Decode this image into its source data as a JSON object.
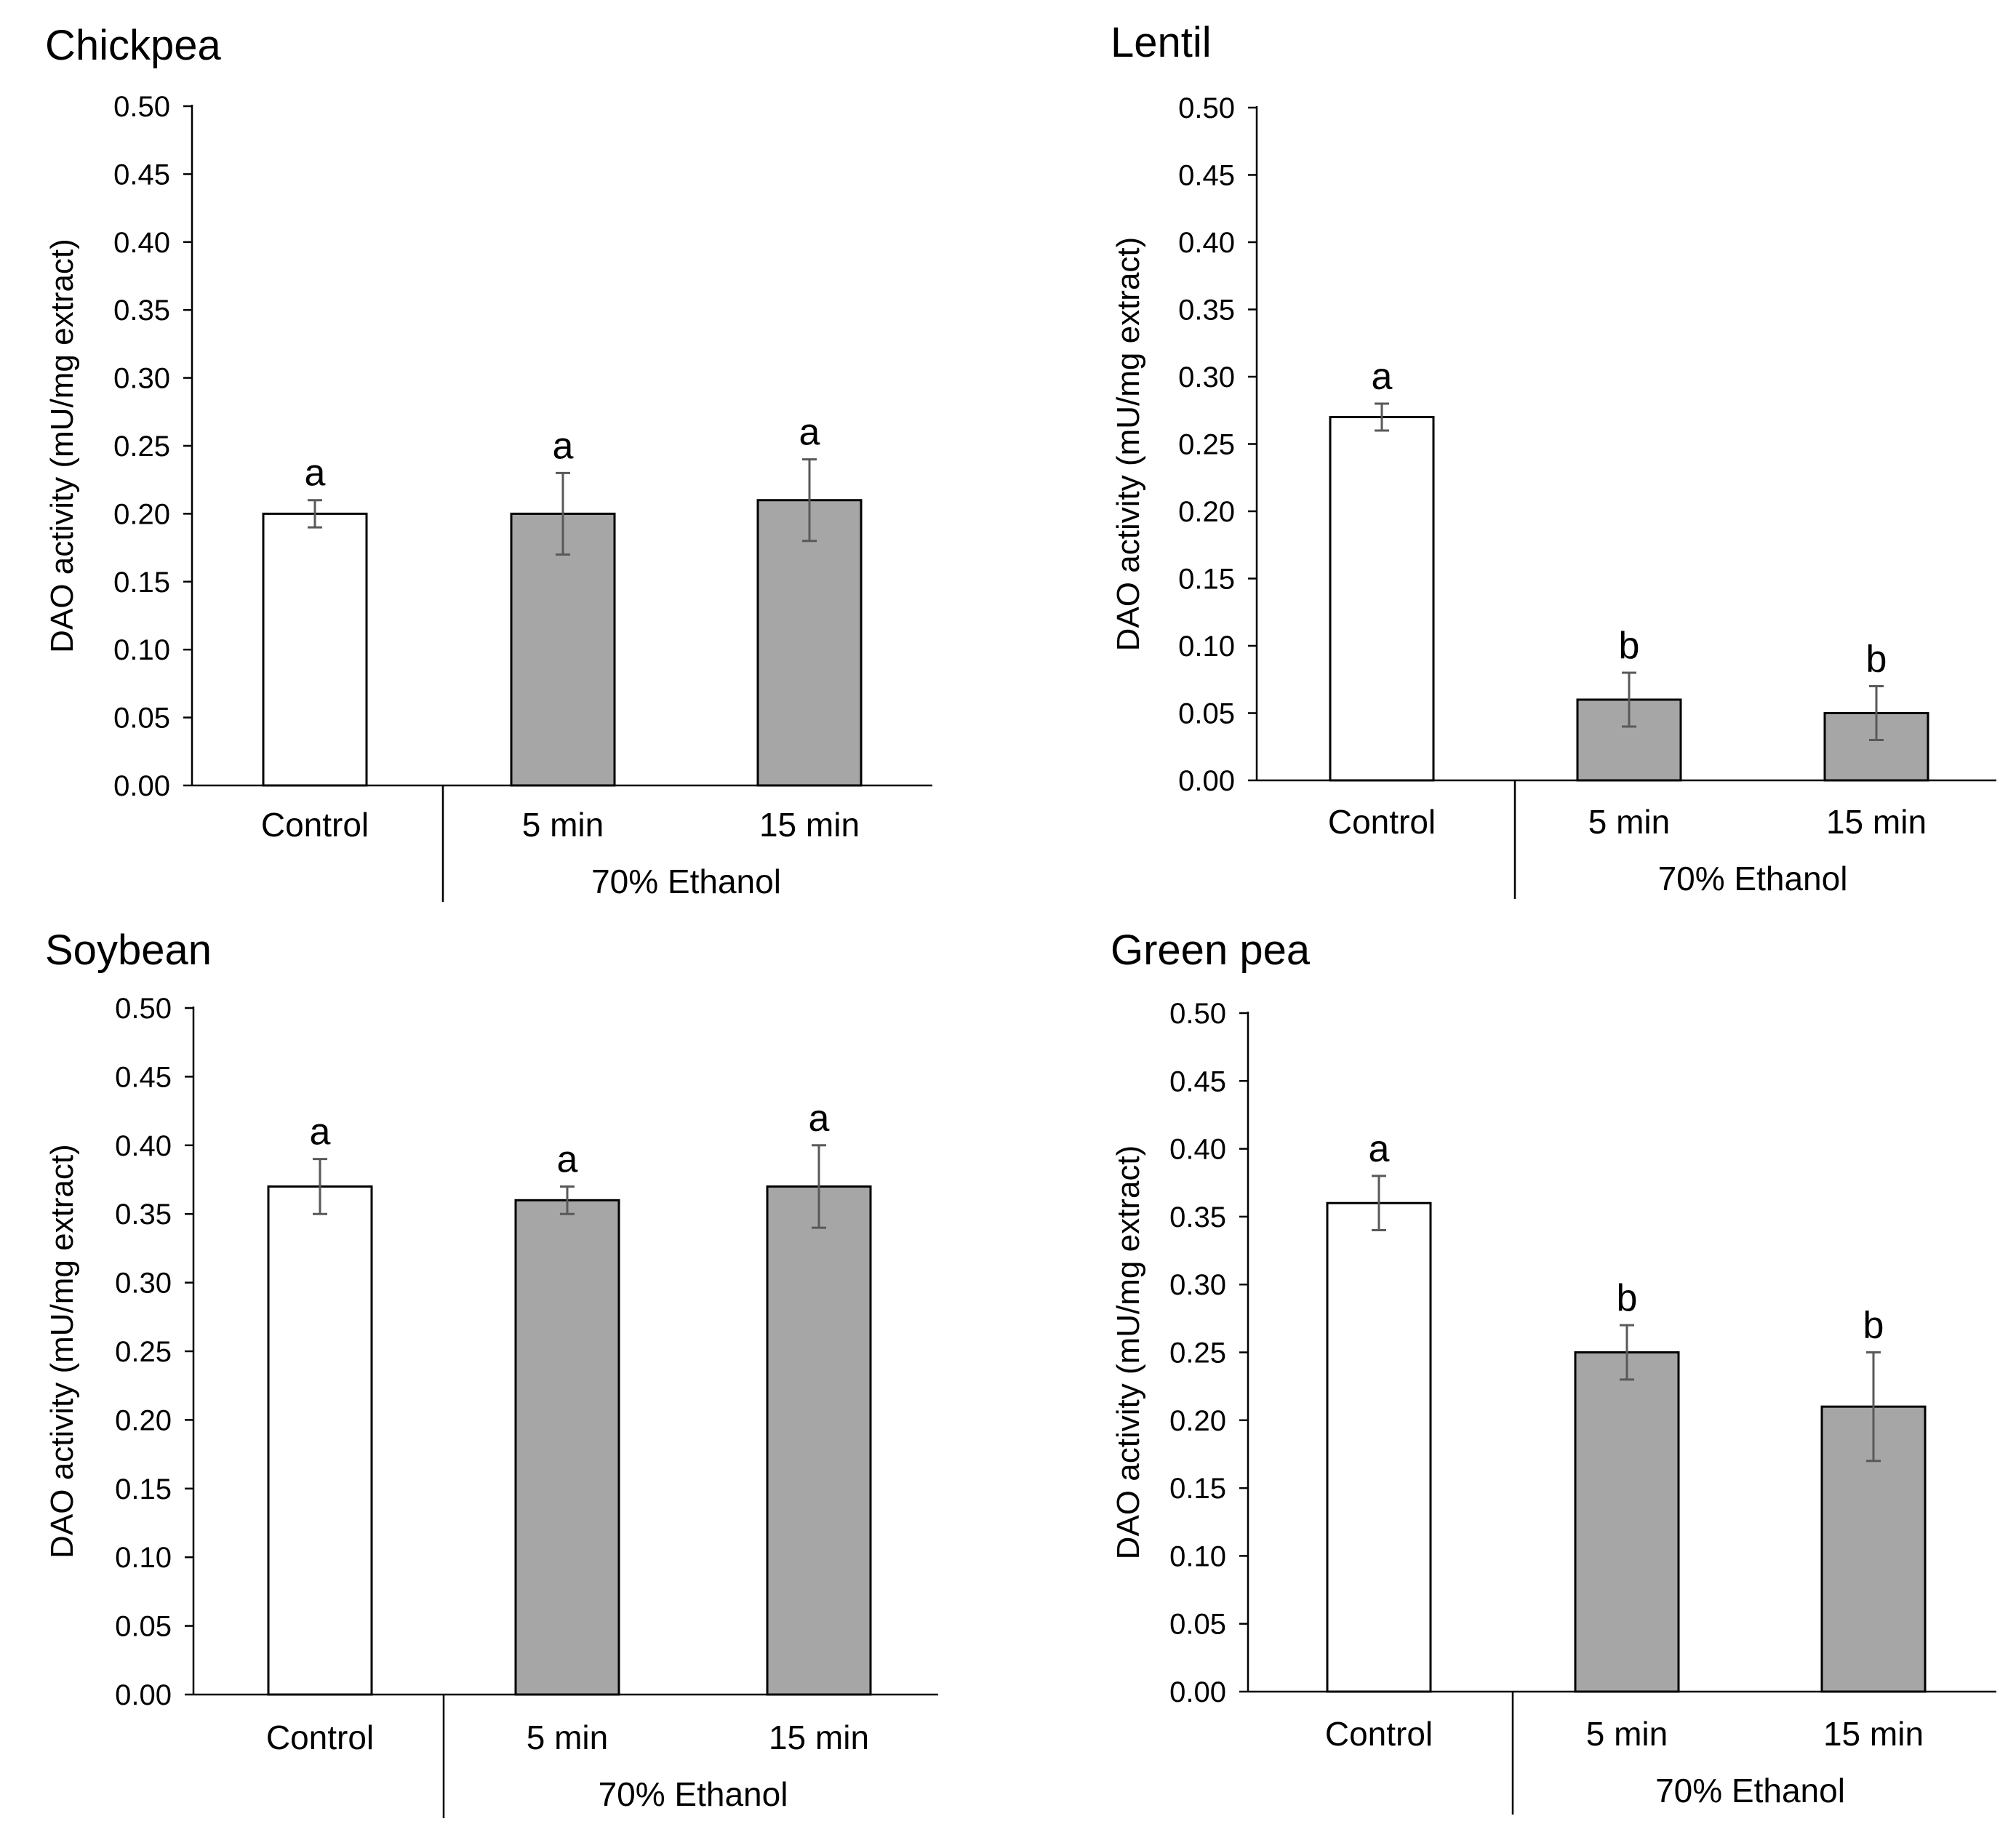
{
  "chart_data": [
    {
      "type": "bar",
      "title": "Chickpea",
      "ylabel": "DAO activity (mU/mg extract)",
      "categories": [
        "Control",
        "5 min",
        "15 min"
      ],
      "group_label": "70% Ethanol",
      "values": [
        0.2,
        0.2,
        0.21
      ],
      "errors": [
        0.01,
        0.03,
        0.03
      ],
      "significance": [
        "a",
        "a",
        "a"
      ],
      "ylim": [
        0,
        0.5
      ],
      "yticks": [
        "0.00",
        "0.05",
        "0.10",
        "0.15",
        "0.20",
        "0.25",
        "0.30",
        "0.35",
        "0.40",
        "0.45",
        "0.50"
      ],
      "bar_colors": [
        "#ffffff",
        "#a6a6a6",
        "#a6a6a6"
      ]
    },
    {
      "type": "bar",
      "title": "Lentil",
      "ylabel": "DAO activity (mU/mg extract)",
      "categories": [
        "Control",
        "5 min",
        "15 min"
      ],
      "group_label": "70% Ethanol",
      "values": [
        0.27,
        0.06,
        0.05
      ],
      "errors": [
        0.01,
        0.02,
        0.02
      ],
      "significance": [
        "a",
        "b",
        "b"
      ],
      "ylim": [
        0,
        0.5
      ],
      "yticks": [
        "0.00",
        "0.05",
        "0.10",
        "0.15",
        "0.20",
        "0.25",
        "0.30",
        "0.35",
        "0.40",
        "0.45",
        "0.50"
      ],
      "bar_colors": [
        "#ffffff",
        "#a6a6a6",
        "#a6a6a6"
      ]
    },
    {
      "type": "bar",
      "title": "Soybean",
      "ylabel": "DAO activity (mU/mg extract)",
      "categories": [
        "Control",
        "5 min",
        "15 min"
      ],
      "group_label": "70% Ethanol",
      "values": [
        0.37,
        0.36,
        0.37
      ],
      "errors": [
        0.02,
        0.01,
        0.03
      ],
      "significance": [
        "a",
        "a",
        "a"
      ],
      "ylim": [
        0,
        0.5
      ],
      "yticks": [
        "0.00",
        "0.05",
        "0.10",
        "0.15",
        "0.20",
        "0.25",
        "0.30",
        "0.35",
        "0.40",
        "0.45",
        "0.50"
      ],
      "bar_colors": [
        "#ffffff",
        "#a6a6a6",
        "#a6a6a6"
      ]
    },
    {
      "type": "bar",
      "title": "Green pea",
      "ylabel": "DAO activity (mU/mg extract)",
      "categories": [
        "Control",
        "5 min",
        "15 min"
      ],
      "group_label": "70% Ethanol",
      "values": [
        0.36,
        0.25,
        0.21
      ],
      "errors": [
        0.02,
        0.02,
        0.04
      ],
      "significance": [
        "a",
        "b",
        "b"
      ],
      "ylim": [
        0,
        0.5
      ],
      "yticks": [
        "0.00",
        "0.05",
        "0.10",
        "0.15",
        "0.20",
        "0.25",
        "0.30",
        "0.35",
        "0.40",
        "0.45",
        "0.50"
      ],
      "bar_colors": [
        "#ffffff",
        "#a6a6a6",
        "#a6a6a6"
      ]
    }
  ]
}
